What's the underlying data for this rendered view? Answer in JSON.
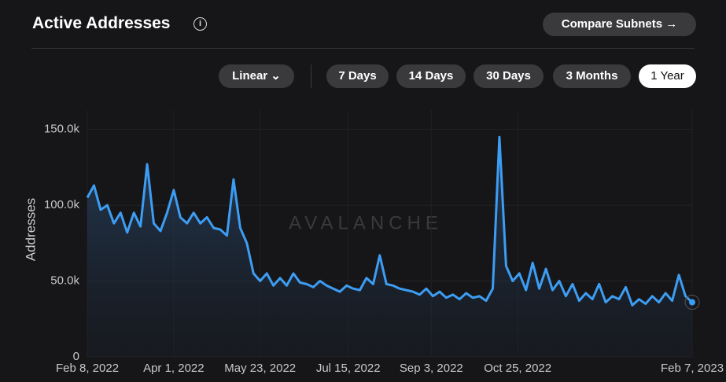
{
  "header": {
    "title": "Active Addresses",
    "compare_button": "Compare Subnets"
  },
  "controls": {
    "scale": "Linear",
    "ranges": [
      "7 Days",
      "14 Days",
      "30 Days",
      "3 Months",
      "1 Year"
    ],
    "selected_range": 4
  },
  "chart_data": {
    "type": "area",
    "watermark": "AVALANCHE",
    "y_label": "Addresses",
    "color": "#3d9df3",
    "grid": true,
    "x": [
      "2022-02-08",
      "2022-02-12",
      "2022-02-16",
      "2022-02-20",
      "2022-02-24",
      "2022-02-28",
      "2022-03-04",
      "2022-03-08",
      "2022-03-12",
      "2022-03-16",
      "2022-03-20",
      "2022-03-24",
      "2022-03-28",
      "2022-04-01",
      "2022-04-05",
      "2022-04-09",
      "2022-04-13",
      "2022-04-17",
      "2022-04-21",
      "2022-04-25",
      "2022-04-29",
      "2022-05-03",
      "2022-05-07",
      "2022-05-11",
      "2022-05-15",
      "2022-05-19",
      "2022-05-23",
      "2022-05-27",
      "2022-05-31",
      "2022-06-04",
      "2022-06-08",
      "2022-06-12",
      "2022-06-16",
      "2022-06-20",
      "2022-06-24",
      "2022-06-28",
      "2022-07-02",
      "2022-07-06",
      "2022-07-10",
      "2022-07-14",
      "2022-07-18",
      "2022-07-22",
      "2022-07-26",
      "2022-07-30",
      "2022-08-03",
      "2022-08-07",
      "2022-08-11",
      "2022-08-15",
      "2022-08-19",
      "2022-08-23",
      "2022-08-27",
      "2022-08-31",
      "2022-09-04",
      "2022-09-08",
      "2022-09-12",
      "2022-09-16",
      "2022-09-20",
      "2022-09-24",
      "2022-09-28",
      "2022-10-02",
      "2022-10-06",
      "2022-10-10",
      "2022-10-14",
      "2022-10-18",
      "2022-10-22",
      "2022-10-26",
      "2022-10-30",
      "2022-11-03",
      "2022-11-07",
      "2022-11-11",
      "2022-11-15",
      "2022-11-19",
      "2022-11-23",
      "2022-11-27",
      "2022-12-01",
      "2022-12-05",
      "2022-12-09",
      "2022-12-13",
      "2022-12-17",
      "2022-12-21",
      "2022-12-25",
      "2022-12-29",
      "2023-01-02",
      "2023-01-06",
      "2023-01-10",
      "2023-01-14",
      "2023-01-18",
      "2023-01-22",
      "2023-01-26",
      "2023-01-30",
      "2023-02-03",
      "2023-02-07"
    ],
    "values": [
      105,
      113,
      97,
      100,
      88,
      95,
      82,
      95,
      86,
      127,
      88,
      83,
      95,
      110,
      92,
      88,
      95,
      88,
      92,
      85,
      84,
      80,
      117,
      85,
      75,
      55,
      50,
      55,
      47,
      52,
      47,
      55,
      49,
      48,
      46,
      50,
      47,
      45,
      43,
      47,
      45,
      44,
      52,
      48,
      67,
      48,
      47,
      45,
      44,
      43,
      41,
      45,
      40,
      43,
      39,
      41,
      38,
      42,
      39,
      40,
      37,
      45,
      145,
      60,
      50,
      55,
      44,
      62,
      45,
      58,
      44,
      50,
      40,
      48,
      37,
      42,
      38,
      48,
      36,
      40,
      38,
      46,
      34,
      38,
      35,
      40,
      36,
      42,
      37,
      54,
      40,
      36
    ],
    "ylim": [
      0,
      155
    ],
    "yticks": [
      0,
      {
        "value": 50,
        "label": "50.0k"
      },
      {
        "value": 100,
        "label": "100.0k"
      },
      {
        "value": 150,
        "label": "150.0k"
      }
    ],
    "xlim": [
      "2022-02-08",
      "2023-02-07"
    ],
    "xticks": [
      {
        "value": "2022-02-08",
        "label": "Feb 8, 2022"
      },
      {
        "value": "2022-04-01",
        "label": "Apr 1, 2022"
      },
      {
        "value": "2022-05-23",
        "label": "May 23, 2022"
      },
      {
        "value": "2022-07-15",
        "label": "Jul 15, 2022"
      },
      {
        "value": "2022-09-03",
        "label": "Sep 3, 2022"
      },
      {
        "value": "2022-10-25",
        "label": "Oct 25, 2022"
      },
      {
        "value": "2023-02-07",
        "label": "Feb 7, 2023"
      }
    ]
  }
}
